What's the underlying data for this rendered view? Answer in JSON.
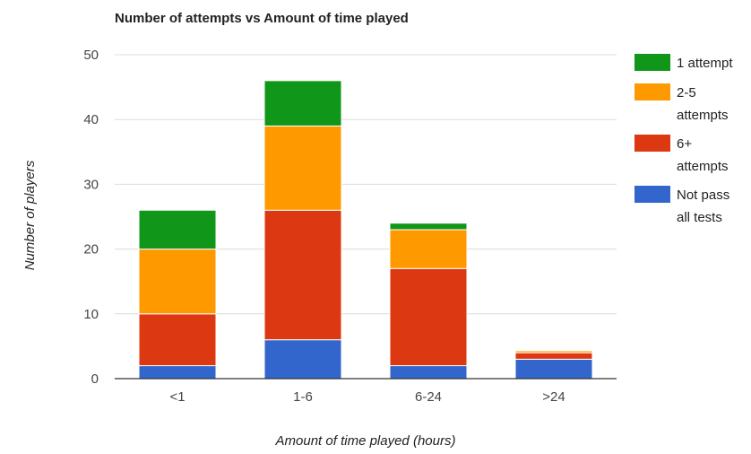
{
  "chart_data": {
    "type": "bar",
    "stacked": true,
    "title": "Number of attempts vs Amount of time played",
    "xlabel": "Amount of time played (hours)",
    "ylabel": "Number of players",
    "categories": [
      "<1",
      "1-6",
      "6-24",
      ">24"
    ],
    "ylim": [
      0,
      50
    ],
    "yticks": [
      0,
      10,
      20,
      30,
      40,
      50
    ],
    "grid": true,
    "legend_position": "right",
    "series": [
      {
        "name": "Not pass all tests",
        "legend_lines": [
          "Not pass",
          "all tests"
        ],
        "color": "#3366cc",
        "values": [
          2,
          6,
          2,
          3
        ]
      },
      {
        "name": "6+ attempts",
        "legend_lines": [
          "6+",
          "attempts"
        ],
        "color": "#dc3912",
        "values": [
          8,
          20,
          15,
          1
        ]
      },
      {
        "name": "2-5 attempts",
        "legend_lines": [
          "2-5",
          "attempts"
        ],
        "color": "#ff9900",
        "values": [
          10,
          13,
          6,
          0.3
        ]
      },
      {
        "name": "1 attempt",
        "legend_lines": [
          "1 attempt"
        ],
        "color": "#109618",
        "values": [
          6,
          7,
          1,
          0
        ]
      }
    ]
  }
}
